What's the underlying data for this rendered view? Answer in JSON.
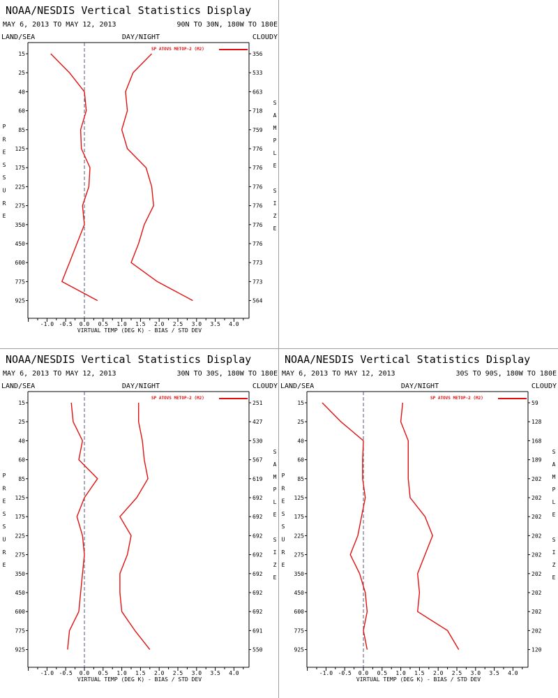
{
  "chart_data": [
    {
      "type": "line",
      "title": "NOAA/NESDIS Vertical Statistics Display",
      "date_range": "MAY 6, 2013 TO MAY 12, 2013",
      "region": "90N TO 30N, 180W TO 180E",
      "top_left_label": "LAND/SEA",
      "top_center_label": "DAY/NIGHT",
      "top_right_label": "CLOUDY",
      "ylabel": "PRESSURE",
      "right_axis_label": "SAMPLE SIZE",
      "xlabel": "VIRTUAL TEMP (DEG K) - BIAS / STD DEV",
      "xlim": [
        -1.5,
        4.25
      ],
      "xticks": [
        "-1.0",
        "-0.5",
        "0.0",
        "0.5",
        "1.0",
        "1.5",
        "2.0",
        "2.5",
        "3.0",
        "3.5",
        "4.0"
      ],
      "pressure_levels": [
        15,
        25,
        40,
        60,
        85,
        125,
        175,
        225,
        275,
        350,
        450,
        600,
        775,
        925
      ],
      "sample_size": [
        356,
        533,
        663,
        718,
        759,
        776,
        776,
        776,
        776,
        776,
        776,
        773,
        773,
        564
      ],
      "legend": "SP ATOVS METOP-2 (M2)",
      "series": [
        {
          "name": "bias",
          "values": [
            -0.9,
            -0.4,
            0.0,
            0.05,
            -0.1,
            -0.08,
            0.15,
            0.12,
            -0.05,
            0.0,
            -0.2,
            -0.4,
            -0.6,
            0.35
          ]
        },
        {
          "name": "std dev",
          "values": [
            1.8,
            1.3,
            1.1,
            1.15,
            1.0,
            1.15,
            1.65,
            1.8,
            1.85,
            1.6,
            1.45,
            1.25,
            1.95,
            2.9
          ]
        }
      ]
    },
    {
      "type": "line",
      "title": "NOAA/NESDIS Vertical Statistics Display",
      "date_range": "MAY 6, 2013 TO MAY 12, 2013",
      "region": "30N TO 30S, 180W TO 180E",
      "top_left_label": "LAND/SEA",
      "top_center_label": "DAY/NIGHT",
      "top_right_label": "CLOUDY",
      "ylabel": "PRESSURE",
      "right_axis_label": "SAMPLE SIZE",
      "xlabel": "VIRTUAL TEMP (DEG K) - BIAS / STD DEV",
      "xlim": [
        -1.5,
        4.25
      ],
      "xticks": [
        "-1.0",
        "-0.5",
        "0.0",
        "0.5",
        "1.0",
        "1.5",
        "2.0",
        "2.5",
        "3.0",
        "3.5",
        "4.0"
      ],
      "pressure_levels": [
        15,
        25,
        40,
        60,
        85,
        125,
        175,
        225,
        275,
        350,
        450,
        600,
        775,
        925
      ],
      "sample_size": [
        251,
        427,
        530,
        567,
        619,
        692,
        692,
        692,
        692,
        692,
        692,
        692,
        691,
        550
      ],
      "legend": "SP ATOVS METOP-2 (M2)",
      "series": [
        {
          "name": "bias",
          "values": [
            -0.35,
            -0.3,
            -0.05,
            -0.15,
            0.35,
            0.0,
            -0.2,
            -0.05,
            0.0,
            -0.05,
            -0.1,
            -0.15,
            -0.4,
            -0.45
          ]
        },
        {
          "name": "std dev",
          "values": [
            1.45,
            1.45,
            1.55,
            1.6,
            1.7,
            1.4,
            0.95,
            1.25,
            1.15,
            0.95,
            0.95,
            1.0,
            1.35,
            1.75
          ]
        }
      ]
    },
    {
      "type": "line",
      "title": "NOAA/NESDIS Vertical Statistics Display",
      "date_range": "MAY 6, 2013 TO MAY 12, 2013",
      "region": "30S TO 90S, 180W TO 180E",
      "top_left_label": "LAND/SEA",
      "top_center_label": "DAY/NIGHT",
      "top_right_label": "CLOUDY",
      "ylabel": "PRESSURE",
      "right_axis_label": "SAMPLE SIZE",
      "xlabel": "VIRTUAL TEMP (DEG K) - BIAS / STD DEV",
      "xlim": [
        -1.5,
        4.25
      ],
      "xticks": [
        "-1.0",
        "-0.5",
        "0.0",
        "0.5",
        "1.0",
        "1.5",
        "2.0",
        "2.5",
        "3.0",
        "3.5",
        "4.0"
      ],
      "pressure_levels": [
        15,
        25,
        40,
        60,
        85,
        125,
        175,
        225,
        275,
        350,
        450,
        600,
        775,
        925
      ],
      "sample_size": [
        59,
        128,
        168,
        189,
        202,
        202,
        202,
        202,
        202,
        202,
        202,
        202,
        202,
        120
      ],
      "legend": "SP ATOVS METOP-2 (M2)",
      "series": [
        {
          "name": "bias",
          "values": [
            -1.1,
            -0.6,
            0.0,
            -0.02,
            -0.02,
            0.05,
            -0.05,
            -0.15,
            -0.35,
            -0.1,
            0.05,
            0.1,
            0.0,
            0.1
          ]
        },
        {
          "name": "std dev",
          "values": [
            1.05,
            1.0,
            1.2,
            1.2,
            1.2,
            1.25,
            1.65,
            1.85,
            1.65,
            1.45,
            1.5,
            1.45,
            2.25,
            2.55
          ]
        }
      ]
    }
  ],
  "colors": {
    "series_line": "#e01010",
    "zero_line": "#555577",
    "axis": "#000000"
  }
}
